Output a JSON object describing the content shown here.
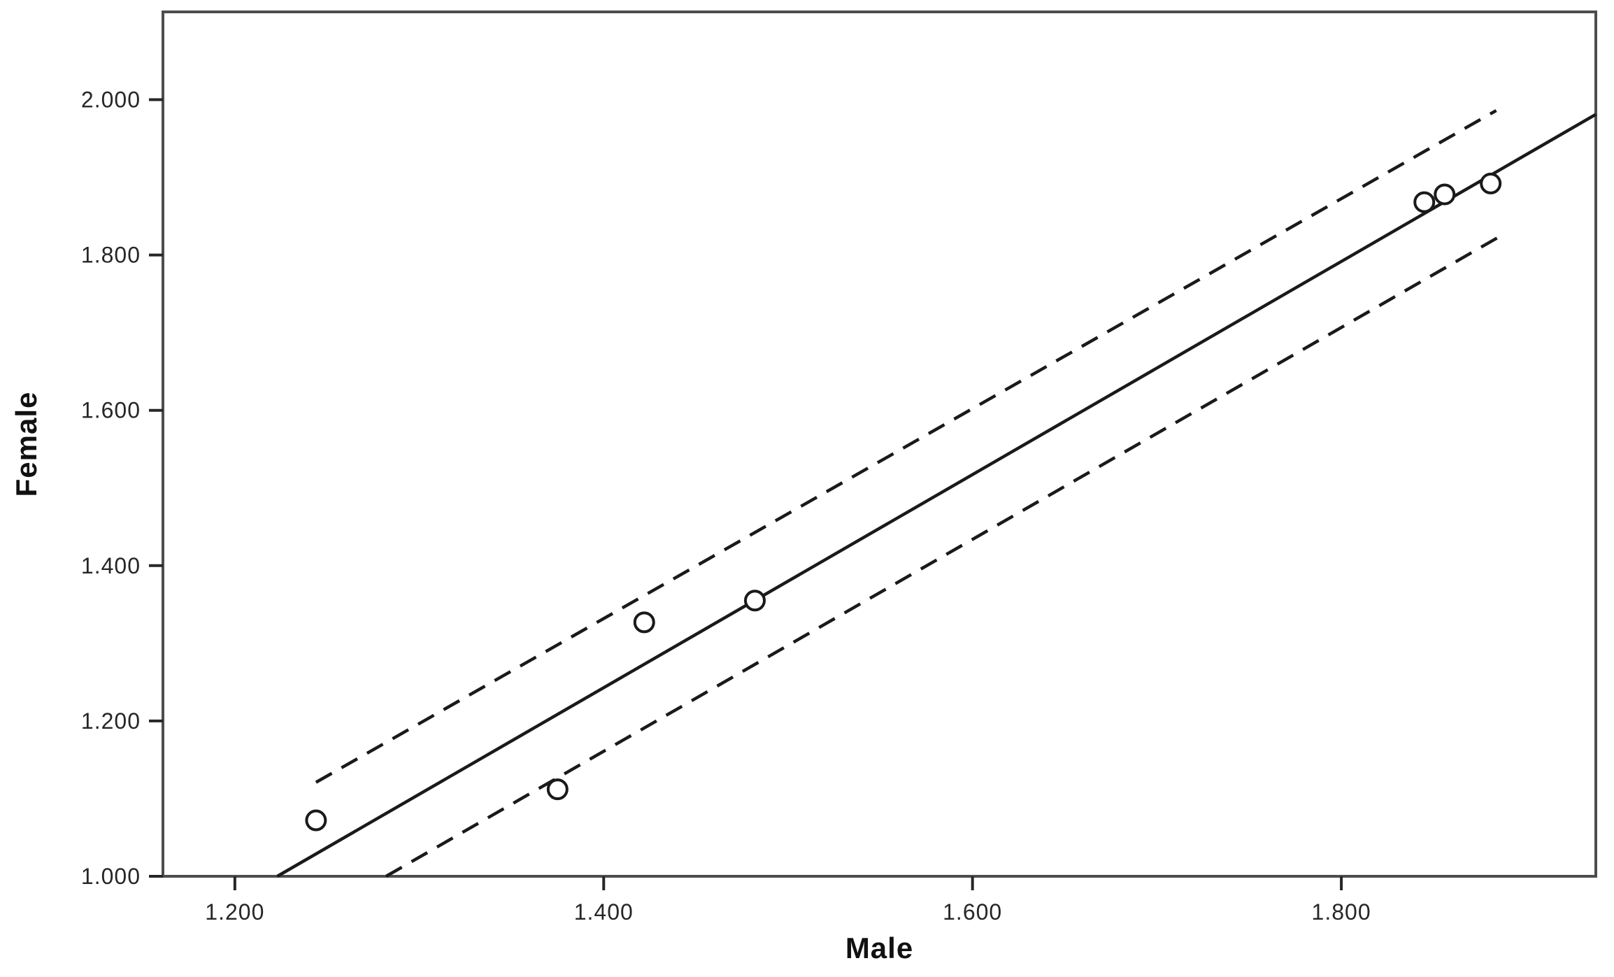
{
  "figure": {
    "background": "#ffffff"
  },
  "chart_data": {
    "type": "scatter",
    "title": "",
    "xlabel": "Male",
    "ylabel": "Female",
    "xlim": [
      1.161,
      1.938
    ],
    "ylim": [
      1.0,
      2.113
    ],
    "grid": false,
    "legend": "none",
    "x_ticks": [
      {
        "value": 1.2,
        "label": "1.200"
      },
      {
        "value": 1.4,
        "label": "1.400"
      },
      {
        "value": 1.6,
        "label": "1.600"
      },
      {
        "value": 1.8,
        "label": "1.800"
      }
    ],
    "y_ticks": [
      {
        "value": 1.0,
        "label": "1.000"
      },
      {
        "value": 1.2,
        "label": "1.200"
      },
      {
        "value": 1.4,
        "label": "1.400"
      },
      {
        "value": 1.6,
        "label": "1.600"
      },
      {
        "value": 1.8,
        "label": "1.800"
      },
      {
        "value": 2.0,
        "label": "2.000"
      }
    ],
    "points": [
      {
        "x": 1.244,
        "y": 1.072
      },
      {
        "x": 1.375,
        "y": 1.112
      },
      {
        "x": 1.422,
        "y": 1.327
      },
      {
        "x": 1.482,
        "y": 1.355
      },
      {
        "x": 1.845,
        "y": 1.868
      },
      {
        "x": 1.856,
        "y": 1.878
      },
      {
        "x": 1.881,
        "y": 1.892
      }
    ],
    "marker": "open-circle",
    "fit_line": {
      "x1": 1.223,
      "y1": 1.0,
      "x2": 1.938,
      "y2": 1.981
    },
    "ci_upper": {
      "x1": 1.244,
      "y1": 1.121,
      "x2": 1.884,
      "y2": 1.986
    },
    "ci_lower": {
      "x1": 1.282,
      "y1": 1.0,
      "x2": 1.886,
      "y2": 1.824
    },
    "colors": {
      "frame": "#4d4d4d",
      "line": "#1a1a1a",
      "marker_stroke": "#1a1a1a",
      "marker_fill": "#ffffff",
      "text": "#262626",
      "background": "#ffffff"
    }
  }
}
